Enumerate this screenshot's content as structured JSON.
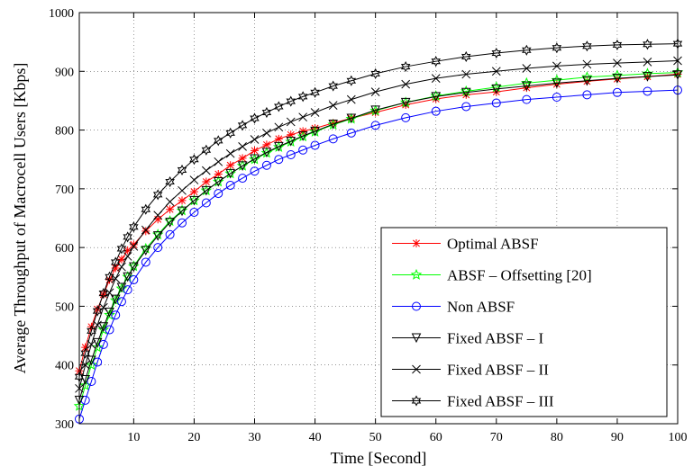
{
  "chart_data": {
    "type": "line",
    "title": "",
    "xlabel": "Time [Second]",
    "ylabel": "Average Throughput of Macrocell Users [Kbps]",
    "xlim": [
      1,
      100
    ],
    "ylim": [
      300,
      1000
    ],
    "xticks": [
      10,
      20,
      30,
      40,
      50,
      60,
      70,
      80,
      90,
      100
    ],
    "yticks": [
      300,
      400,
      500,
      600,
      700,
      800,
      900,
      1000
    ],
    "grid": true,
    "legend_position": "bottom-right",
    "x": [
      1,
      2,
      3,
      4,
      5,
      6,
      7,
      8,
      9,
      10,
      12,
      14,
      16,
      18,
      20,
      22,
      24,
      26,
      28,
      30,
      32,
      34,
      36,
      38,
      40,
      43,
      46,
      50,
      55,
      60,
      65,
      70,
      75,
      80,
      85,
      90,
      95,
      100
    ],
    "series": [
      {
        "name": "Optimal ABSF",
        "color": "#ff0000",
        "marker": "asterisk",
        "values": [
          390,
          430,
          465,
          495,
          520,
          545,
          565,
          580,
          595,
          605,
          628,
          648,
          665,
          680,
          695,
          712,
          725,
          740,
          752,
          765,
          775,
          785,
          792,
          798,
          803,
          812,
          820,
          830,
          843,
          853,
          860,
          865,
          872,
          878,
          883,
          887,
          891,
          895
        ]
      },
      {
        "name": "ABSF – Offsetting [20]",
        "color": "#00ff00",
        "marker": "star",
        "values": [
          330,
          365,
          400,
          430,
          460,
          485,
          510,
          530,
          550,
          568,
          598,
          622,
          645,
          663,
          680,
          697,
          712,
          726,
          739,
          750,
          761,
          771,
          780,
          789,
          797,
          809,
          819,
          833,
          847,
          858,
          866,
          873,
          880,
          885,
          890,
          893,
          896,
          898
        ]
      },
      {
        "name": "Non ABSF",
        "color": "#0000ff",
        "marker": "circle",
        "values": [
          308,
          340,
          372,
          405,
          435,
          460,
          485,
          508,
          528,
          545,
          575,
          600,
          622,
          642,
          660,
          676,
          692,
          706,
          718,
          730,
          740,
          750,
          758,
          766,
          774,
          785,
          795,
          808,
          821,
          832,
          840,
          846,
          852,
          856,
          860,
          864,
          866,
          868
        ]
      },
      {
        "name": "Fixed ABSF – I",
        "color": "#000000",
        "marker": "triangle-down",
        "values": [
          340,
          375,
          408,
          438,
          465,
          490,
          512,
          532,
          550,
          567,
          595,
          620,
          643,
          662,
          680,
          697,
          712,
          726,
          739,
          751,
          762,
          772,
          781,
          790,
          798,
          810,
          820,
          834,
          847,
          857,
          864,
          870,
          875,
          880,
          884,
          888,
          891,
          894
        ]
      },
      {
        "name": "Fixed ABSF – II",
        "color": "#000000",
        "marker": "x",
        "values": [
          360,
          400,
          435,
          468,
          498,
          523,
          547,
          567,
          585,
          602,
          630,
          655,
          678,
          697,
          715,
          731,
          746,
          760,
          772,
          784,
          795,
          805,
          814,
          822,
          830,
          842,
          852,
          865,
          878,
          888,
          895,
          900,
          905,
          909,
          912,
          914,
          916,
          918
        ]
      },
      {
        "name": "Fixed ABSF – III",
        "color": "#000000",
        "marker": "hexagram",
        "values": [
          380,
          420,
          458,
          492,
          522,
          550,
          575,
          598,
          618,
          635,
          665,
          690,
          712,
          732,
          750,
          766,
          782,
          795,
          808,
          820,
          830,
          840,
          849,
          857,
          864,
          875,
          884,
          896,
          908,
          917,
          925,
          931,
          936,
          940,
          943,
          945,
          946,
          947
        ]
      }
    ]
  }
}
